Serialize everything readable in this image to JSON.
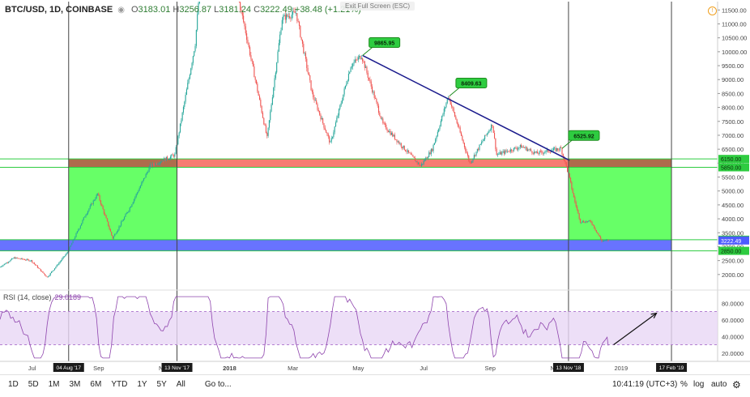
{
  "header": {
    "symbol": "BTC/USD, 1D, COINBASE",
    "open_label": "O",
    "open": "3183.01",
    "high_label": "H",
    "high": "3256.87",
    "low_label": "L",
    "low": "3181.24",
    "close_label": "C",
    "close": "3222.49",
    "change": "+38.48 (+1.21%)",
    "exit_fullscreen": "Exit Full Screen (ESC)"
  },
  "colors": {
    "up": "#26a69a",
    "down": "#ef5350",
    "trendline": "#1a1a8c",
    "green_zone": "#4cff4c",
    "red_zone": "#f44336",
    "blue_zone": "#4d5bff",
    "brown_zone": "#a0522d",
    "rsi": "#8e44ad"
  },
  "chart_data": [
    {
      "type": "candlestick",
      "title": "BTC/USD, 1D, COINBASE",
      "y_axis": {
        "scale": "linear",
        "ylim": [
          1500,
          11800
        ],
        "ticks": [
          "2000.00",
          "2500.00",
          "3000.00",
          "3500.00",
          "4000.00",
          "4500.00",
          "5000.00",
          "5500.00",
          "6000.00",
          "6500.00",
          "7000.00",
          "7500.00",
          "8000.00",
          "8500.00",
          "9000.00",
          "9500.00",
          "10000.00",
          "10500.00",
          "11000.00",
          "11500.00"
        ]
      },
      "x_axis": {
        "ticks": [
          "Jul",
          "Sep",
          "Nov",
          "2018",
          "Mar",
          "May",
          "Jul",
          "Sep",
          "Nov",
          "2019"
        ],
        "highlighted": [
          "04 Aug '17",
          "13 Nov '17",
          "13 Nov '18",
          "17 Feb '19"
        ]
      },
      "approx_price_path": [
        [
          "2017-06-01",
          2250
        ],
        [
          "2017-06-15",
          2600
        ],
        [
          "2017-07-01",
          2500
        ],
        [
          "2017-07-16",
          1900
        ],
        [
          "2017-08-04",
          2800
        ],
        [
          "2017-08-20",
          4100
        ],
        [
          "2017-09-01",
          4900
        ],
        [
          "2017-09-15",
          3300
        ],
        [
          "2017-10-01",
          4400
        ],
        [
          "2017-10-20",
          5900
        ],
        [
          "2017-11-12",
          6300
        ],
        [
          "2017-12-01",
          10300
        ],
        [
          "2017-12-17",
          18000
        ],
        [
          "2018-01-01",
          13500
        ],
        [
          "2018-01-16",
          10900
        ],
        [
          "2018-02-06",
          6900
        ],
        [
          "2018-02-20",
          11200
        ],
        [
          "2018-03-05",
          11400
        ],
        [
          "2018-03-20",
          8500
        ],
        [
          "2018-04-06",
          6700
        ],
        [
          "2018-04-25",
          9500
        ],
        [
          "2018-05-05",
          9866
        ],
        [
          "2018-05-25",
          7400
        ],
        [
          "2018-06-12",
          6600
        ],
        [
          "2018-06-29",
          5900
        ],
        [
          "2018-07-10",
          6500
        ],
        [
          "2018-07-25",
          8410
        ],
        [
          "2018-08-14",
          6000
        ],
        [
          "2018-09-04",
          7400
        ],
        [
          "2018-09-08",
          6300
        ],
        [
          "2018-10-01",
          6600
        ],
        [
          "2018-10-15",
          6350
        ],
        [
          "2018-11-07",
          6526
        ],
        [
          "2018-11-14",
          5600
        ],
        [
          "2018-11-20",
          4600
        ],
        [
          "2018-11-25",
          3900
        ],
        [
          "2018-12-05",
          3900
        ],
        [
          "2018-12-15",
          3200
        ],
        [
          "2018-12-20",
          3222
        ]
      ],
      "annotations": [
        {
          "label": "9865.95",
          "date": "2018-05-05",
          "price": 9866
        },
        {
          "label": "8409.63",
          "date": "2018-07-25",
          "price": 8410
        },
        {
          "label": "6525.92",
          "date": "2018-11-07",
          "price": 6526
        }
      ],
      "trendline": {
        "from": [
          "2018-05-05",
          9866
        ],
        "to": [
          "2018-11-14",
          6100
        ]
      },
      "zones": [
        {
          "kind": "green",
          "from": "2017-08-04",
          "to": "2017-11-13",
          "low": 3222,
          "high": 5850
        },
        {
          "kind": "green",
          "from": "2018-11-13",
          "to": "2019-02-17",
          "low": 3222,
          "high": 5850
        },
        {
          "kind": "red",
          "from": "2017-11-13",
          "to": "2018-11-13",
          "low": 5850,
          "high": 6150
        },
        {
          "kind": "brown",
          "from": "2017-08-04",
          "to": "2017-11-13",
          "low": 5850,
          "high": 6150
        },
        {
          "kind": "brown",
          "from": "2018-11-13",
          "to": "2019-02-17",
          "low": 5850,
          "high": 6150
        },
        {
          "kind": "blue",
          "from": "2017-06-01",
          "to": "2019-02-17",
          "low": 2850,
          "high": 3250
        }
      ],
      "horizontal_lines": [
        6150,
        5850,
        3250,
        2850
      ],
      "price_labels": [
        {
          "value": 6150,
          "text": "6150.00"
        },
        {
          "value": 5850,
          "text": "5850.00"
        },
        {
          "value": 3250,
          "text": "3250.00"
        },
        {
          "value": 3222.49,
          "text": "3222.49"
        },
        {
          "value": 2850,
          "text": "2850.00"
        }
      ],
      "verticals": [
        "2017-08-04",
        "2017-11-13",
        "2018-11-13",
        "2019-02-17"
      ],
      "arrow": {
        "from": [
          "2018-12-25",
          30
        ],
        "to": [
          "2019-02-03",
          68
        ]
      }
    },
    {
      "type": "line",
      "title": "RSI (14, close)",
      "current": "29.0189",
      "y_axis": {
        "ylim": [
          10,
          92
        ],
        "ticks": [
          "20.0000",
          "40.0000",
          "60.0000",
          "80.0000"
        ]
      },
      "bands": {
        "upper": 70,
        "lower": 30
      }
    }
  ],
  "bottom_bar": {
    "timeframes": [
      "1D",
      "5D",
      "1M",
      "3M",
      "6M",
      "YTD",
      "1Y",
      "5Y",
      "All"
    ],
    "goto": "Go to...",
    "clock": "10:41:19 (UTC+3)",
    "pct": "%",
    "log": "log",
    "auto": "auto"
  }
}
